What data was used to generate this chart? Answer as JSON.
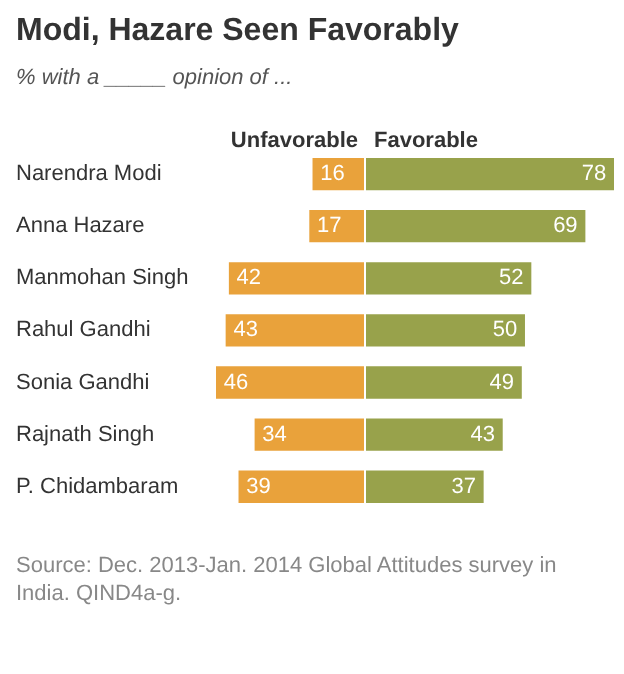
{
  "chart_data": [
    {
      "type": "bar",
      "orientation": "horizontal",
      "title": "Modi, Hazare Seen Favorably",
      "subtitle": "% with a _____ opinion of ...",
      "categories": [
        "Narendra Modi",
        "Anna Hazare",
        "Manmohan Singh",
        "Rahul Gandhi",
        "Sonia Gandhi",
        "Rajnath Singh",
        "P. Chidambaram"
      ],
      "series": [
        {
          "name": "Unfavorable",
          "color": "#e9a23b",
          "values": [
            16,
            17,
            42,
            43,
            46,
            34,
            39
          ]
        }
      ],
      "xlim": [
        46,
        0
      ],
      "data_labels": true,
      "grid": false,
      "tick_labels": "y",
      "annotations": [
        "Source: Dec. 2013-Jan. 2014 Global Attitudes survey in India. QIND4a-g."
      ]
    },
    {
      "type": "bar",
      "orientation": "horizontal",
      "categories": [
        null,
        null,
        null,
        null,
        null,
        null,
        null
      ],
      "series": [
        {
          "name": "Favorable",
          "color": "#98a24b",
          "values": [
            78,
            69,
            52,
            50,
            49,
            43,
            37
          ]
        }
      ],
      "xlim": [
        0,
        78
      ],
      "data_labels": true,
      "grid": false,
      "tick_labels": false
    }
  ]
}
